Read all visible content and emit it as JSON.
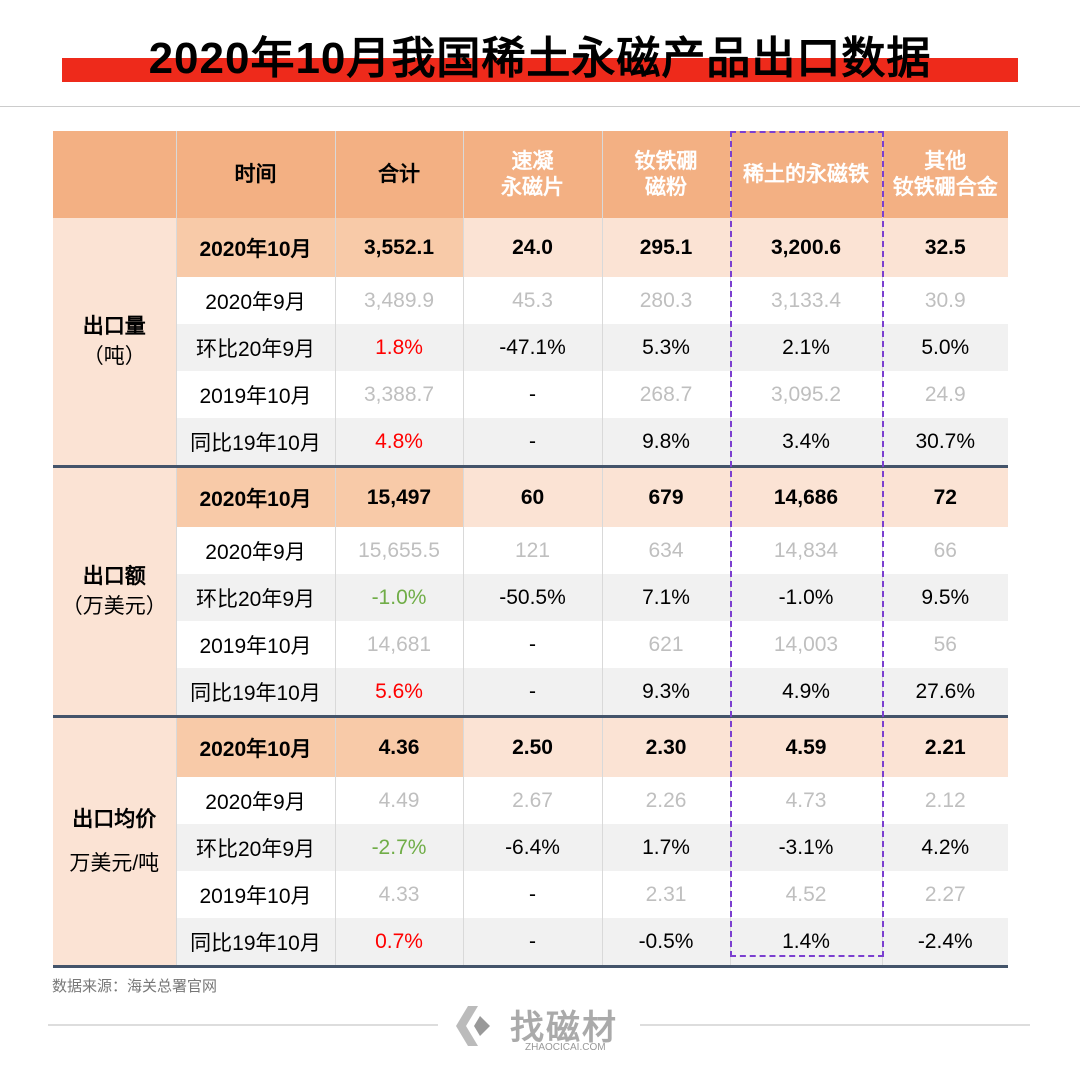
{
  "title": "2020年10月我国稀土永磁产品出口数据",
  "colors": {
    "header": "#f3b083",
    "highlight": "#fbe3d4",
    "red": "#ff0000",
    "green": "#70ad47",
    "gray": "#bfbfbf",
    "accent_bar": "#ee2a1b",
    "dash": "#7b3fd0"
  },
  "headers": [
    "时间",
    "合计",
    "速凝\n永磁片",
    "钕铁硼\n磁粉",
    "稀土的永磁铁",
    "其他\n钕铁硼合金"
  ],
  "groups": [
    {
      "label": "出口量",
      "unit": "（吨）",
      "rows": [
        {
          "time": "2020年10月",
          "vals": [
            "3,552.1",
            "24.0",
            "295.1",
            "3,200.6",
            "32.5"
          ],
          "style": "hl"
        },
        {
          "time": "2020年9月",
          "vals": [
            "3,489.9",
            "45.3",
            "280.3",
            "3,133.4",
            "30.9"
          ],
          "style": "gray"
        },
        {
          "time": "环比20年9月",
          "vals": [
            "1.8%",
            "-47.1%",
            "5.3%",
            "2.1%",
            "5.0%"
          ],
          "style": "pct",
          "first": "red"
        },
        {
          "time": "2019年10月",
          "vals": [
            "3,388.7",
            "-",
            "268.7",
            "3,095.2",
            "24.9"
          ],
          "style": "gray"
        },
        {
          "time": "同比19年10月",
          "vals": [
            "4.8%",
            "-",
            "9.8%",
            "3.4%",
            "30.7%"
          ],
          "style": "pct",
          "first": "red"
        }
      ]
    },
    {
      "label": "出口额",
      "unit": "（万美元）",
      "rows": [
        {
          "time": "2020年10月",
          "vals": [
            "15,497",
            "60",
            "679",
            "14,686",
            "72"
          ],
          "style": "hl"
        },
        {
          "time": "2020年9月",
          "vals": [
            "15,655.5",
            "121",
            "634",
            "14,834",
            "66"
          ],
          "style": "gray"
        },
        {
          "time": "环比20年9月",
          "vals": [
            "-1.0%",
            "-50.5%",
            "7.1%",
            "-1.0%",
            "9.5%"
          ],
          "style": "pct",
          "first": "green"
        },
        {
          "time": "2019年10月",
          "vals": [
            "14,681",
            "-",
            "621",
            "14,003",
            "56"
          ],
          "style": "gray"
        },
        {
          "time": "同比19年10月",
          "vals": [
            "5.6%",
            "-",
            "9.3%",
            "4.9%",
            "27.6%"
          ],
          "style": "pct",
          "first": "red"
        }
      ]
    },
    {
      "label": "出口均价",
      "unit": "万美元/吨",
      "rows": [
        {
          "time": "2020年10月",
          "vals": [
            "4.36",
            "2.50",
            "2.30",
            "4.59",
            "2.21"
          ],
          "style": "hl"
        },
        {
          "time": "2020年9月",
          "vals": [
            "4.49",
            "2.67",
            "2.26",
            "4.73",
            "2.12"
          ],
          "style": "gray"
        },
        {
          "time": "环比20年9月",
          "vals": [
            "-2.7%",
            "-6.4%",
            "1.7%",
            "-3.1%",
            "4.2%"
          ],
          "style": "pct",
          "first": "green"
        },
        {
          "time": "2019年10月",
          "vals": [
            "4.33",
            "-",
            "2.31",
            "4.52",
            "2.27"
          ],
          "style": "gray"
        },
        {
          "time": "同比19年10月",
          "vals": [
            "0.7%",
            "-",
            "-0.5%",
            "1.4%",
            "-2.4%"
          ],
          "style": "pct",
          "first": "red"
        }
      ]
    }
  ],
  "source": "数据来源：海关总署官网",
  "logo": {
    "name": "找磁材",
    "sub": "ZHAOCICAI.COM"
  },
  "chart_data": {
    "type": "table",
    "title": "2020年10月我国稀土永磁产品出口数据",
    "columns": [
      "时间",
      "合计",
      "速凝永磁片",
      "钕铁硼磁粉",
      "稀土的永磁铁",
      "其他钕铁硼合金"
    ]
  }
}
